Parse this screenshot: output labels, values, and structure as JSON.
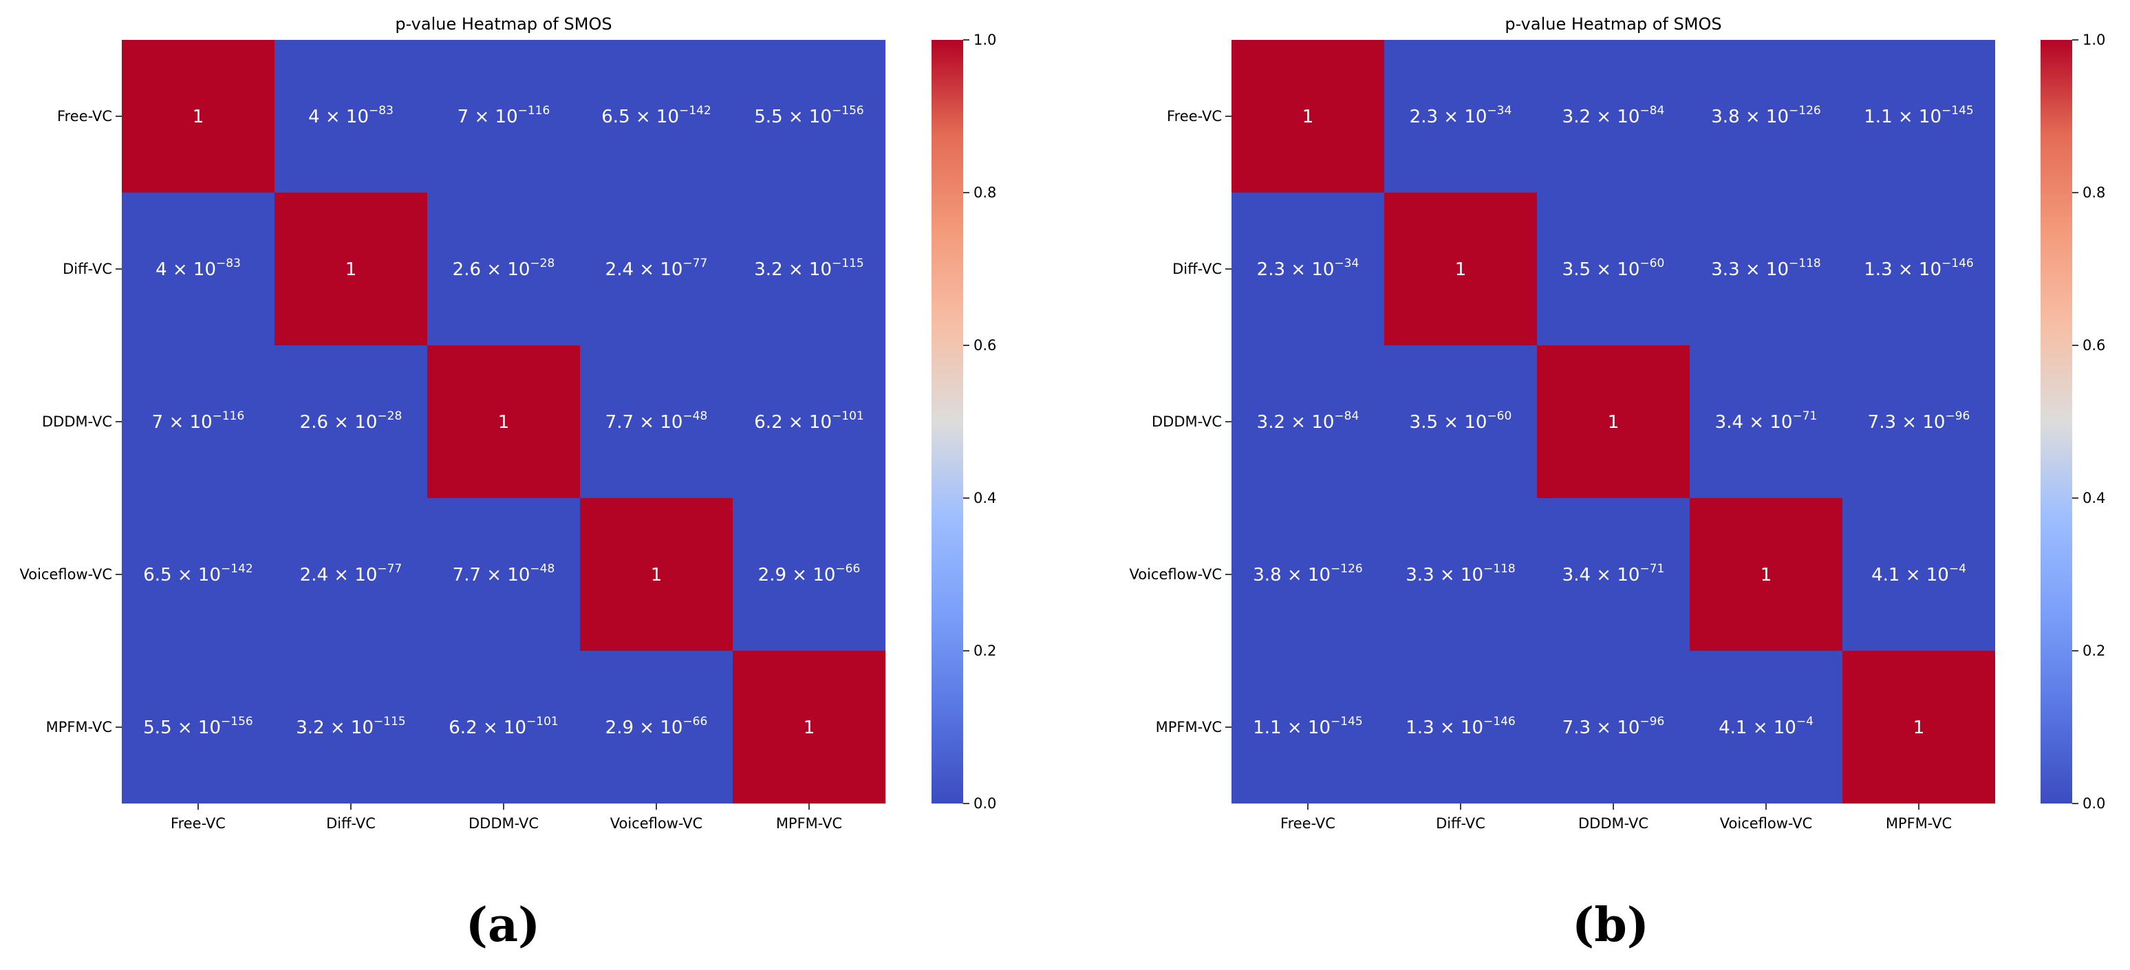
{
  "chart_data": [
    {
      "type": "heatmap",
      "panel_label": "(a)",
      "title": "p-value Heatmap of SMOS",
      "xlabel": "",
      "ylabel": "",
      "row_labels": [
        "Free-VC",
        "Diff-VC",
        "DDDM-VC",
        "Voiceflow-VC",
        "MPFM-VC"
      ],
      "col_labels": [
        "Free-VC",
        "Diff-VC",
        "DDDM-VC",
        "Voiceflow-VC",
        "MPFM-VC"
      ],
      "values": [
        [
          1,
          4e-83,
          7e-116,
          6.5e-142,
          5.5e-156
        ],
        [
          4e-83,
          1,
          2.6e-28,
          2.4e-77,
          3.2e-115
        ],
        [
          7e-116,
          2.6e-28,
          1,
          7.7e-48,
          6.2e-101
        ],
        [
          6.5e-142,
          2.4e-77,
          7.7e-48,
          1,
          2.9e-66
        ],
        [
          5.5e-156,
          3.2e-115,
          6.2e-101,
          2.9e-66,
          1
        ]
      ],
      "annotations": [
        [
          {
            "m": "1",
            "e": ""
          },
          {
            "m": "4 × 10",
            "e": "−83"
          },
          {
            "m": "7 × 10",
            "e": "−116"
          },
          {
            "m": "6.5 × 10",
            "e": "−142"
          },
          {
            "m": "5.5 × 10",
            "e": "−156"
          }
        ],
        [
          {
            "m": "4 × 10",
            "e": "−83"
          },
          {
            "m": "1",
            "e": ""
          },
          {
            "m": "2.6 × 10",
            "e": "−28"
          },
          {
            "m": "2.4 × 10",
            "e": "−77"
          },
          {
            "m": "3.2 × 10",
            "e": "−115"
          }
        ],
        [
          {
            "m": "7 × 10",
            "e": "−116"
          },
          {
            "m": "2.6 × 10",
            "e": "−28"
          },
          {
            "m": "1",
            "e": ""
          },
          {
            "m": "7.7 × 10",
            "e": "−48"
          },
          {
            "m": "6.2 × 10",
            "e": "−101"
          }
        ],
        [
          {
            "m": "6.5 × 10",
            "e": "−142"
          },
          {
            "m": "2.4 × 10",
            "e": "−77"
          },
          {
            "m": "7.7 × 10",
            "e": "−48"
          },
          {
            "m": "1",
            "e": ""
          },
          {
            "m": "2.9 × 10",
            "e": "−66"
          }
        ],
        [
          {
            "m": "5.5 × 10",
            "e": "−156"
          },
          {
            "m": "3.2 × 10",
            "e": "−115"
          },
          {
            "m": "6.2 × 10",
            "e": "−101"
          },
          {
            "m": "2.9 × 10",
            "e": "−66"
          },
          {
            "m": "1",
            "e": ""
          }
        ]
      ],
      "colormap": "coolwarm",
      "vmin": 0,
      "vmax": 1,
      "colorbar_ticks": [
        "0.0",
        "0.2",
        "0.4",
        "0.6",
        "0.8",
        "1.0"
      ],
      "colors": {
        "low": "#3b4cc0",
        "high": "#b40426"
      }
    },
    {
      "type": "heatmap",
      "panel_label": "(b)",
      "title": "p-value Heatmap of SMOS",
      "xlabel": "",
      "ylabel": "",
      "row_labels": [
        "Free-VC",
        "Diff-VC",
        "DDDM-VC",
        "Voiceflow-VC",
        "MPFM-VC"
      ],
      "col_labels": [
        "Free-VC",
        "Diff-VC",
        "DDDM-VC",
        "Voiceflow-VC",
        "MPFM-VC"
      ],
      "values": [
        [
          1,
          2.3e-34,
          3.2e-84,
          3.8e-126,
          1.1e-145
        ],
        [
          2.3e-34,
          1,
          3.5e-60,
          3.3e-118,
          1.3e-146
        ],
        [
          3.2e-84,
          3.5e-60,
          1,
          3.4e-71,
          7.3e-96
        ],
        [
          3.8e-126,
          3.3e-118,
          3.4e-71,
          1,
          0.00041
        ],
        [
          1.1e-145,
          1.3e-146,
          7.3e-96,
          0.00041,
          1
        ]
      ],
      "annotations": [
        [
          {
            "m": "1",
            "e": ""
          },
          {
            "m": "2.3 × 10",
            "e": "−34"
          },
          {
            "m": "3.2 × 10",
            "e": "−84"
          },
          {
            "m": "3.8 × 10",
            "e": "−126"
          },
          {
            "m": "1.1 × 10",
            "e": "−145"
          }
        ],
        [
          {
            "m": "2.3 × 10",
            "e": "−34"
          },
          {
            "m": "1",
            "e": ""
          },
          {
            "m": "3.5 × 10",
            "e": "−60"
          },
          {
            "m": "3.3 × 10",
            "e": "−118"
          },
          {
            "m": "1.3 × 10",
            "e": "−146"
          }
        ],
        [
          {
            "m": "3.2 × 10",
            "e": "−84"
          },
          {
            "m": "3.5 × 10",
            "e": "−60"
          },
          {
            "m": "1",
            "e": ""
          },
          {
            "m": "3.4 × 10",
            "e": "−71"
          },
          {
            "m": "7.3 × 10",
            "e": "−96"
          }
        ],
        [
          {
            "m": "3.8 × 10",
            "e": "−126"
          },
          {
            "m": "3.3 × 10",
            "e": "−118"
          },
          {
            "m": "3.4 × 10",
            "e": "−71"
          },
          {
            "m": "1",
            "e": ""
          },
          {
            "m": "4.1 × 10",
            "e": "−4"
          }
        ],
        [
          {
            "m": "1.1 × 10",
            "e": "−145"
          },
          {
            "m": "1.3 × 10",
            "e": "−146"
          },
          {
            "m": "7.3 × 10",
            "e": "−96"
          },
          {
            "m": "4.1 × 10",
            "e": "−4"
          },
          {
            "m": "1",
            "e": ""
          }
        ]
      ],
      "colormap": "coolwarm",
      "vmin": 0,
      "vmax": 1,
      "colorbar_ticks": [
        "0.0",
        "0.2",
        "0.4",
        "0.6",
        "0.8",
        "1.0"
      ],
      "colors": {
        "low": "#3b4cc0",
        "high": "#b40426"
      }
    }
  ]
}
